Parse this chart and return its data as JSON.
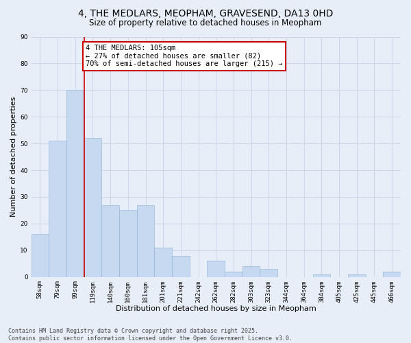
{
  "title": "4, THE MEDLARS, MEOPHAM, GRAVESEND, DA13 0HD",
  "subtitle": "Size of property relative to detached houses in Meopham",
  "xlabel": "Distribution of detached houses by size in Meopham",
  "ylabel": "Number of detached properties",
  "bar_labels": [
    "58sqm",
    "79sqm",
    "99sqm",
    "119sqm",
    "140sqm",
    "160sqm",
    "181sqm",
    "201sqm",
    "221sqm",
    "242sqm",
    "262sqm",
    "282sqm",
    "303sqm",
    "323sqm",
    "344sqm",
    "364sqm",
    "384sqm",
    "405sqm",
    "425sqm",
    "445sqm",
    "466sqm"
  ],
  "bar_values": [
    16,
    51,
    70,
    52,
    27,
    25,
    27,
    11,
    8,
    0,
    6,
    2,
    4,
    3,
    0,
    0,
    1,
    0,
    1,
    0,
    2
  ],
  "bar_color": "#c6d9f0",
  "bar_edge_color": "#9ab8d8",
  "vline_color": "#cc0000",
  "annotation_title": "4 THE MEDLARS: 105sqm",
  "annotation_line1": "← 27% of detached houses are smaller (82)",
  "annotation_line2": "70% of semi-detached houses are larger (215) →",
  "annotation_box_color": "#cc0000",
  "annotation_bg": "#ffffff",
  "ylim": [
    0,
    90
  ],
  "yticks": [
    0,
    10,
    20,
    30,
    40,
    50,
    60,
    70,
    80,
    90
  ],
  "grid_color": "#ccd6e8",
  "background_color": "#e8eef8",
  "footer_line1": "Contains HM Land Registry data © Crown copyright and database right 2025.",
  "footer_line2": "Contains public sector information licensed under the Open Government Licence v3.0.",
  "title_fontsize": 10,
  "subtitle_fontsize": 8.5,
  "axis_label_fontsize": 8,
  "tick_fontsize": 6.5,
  "annotation_fontsize": 7.5,
  "footer_fontsize": 6
}
